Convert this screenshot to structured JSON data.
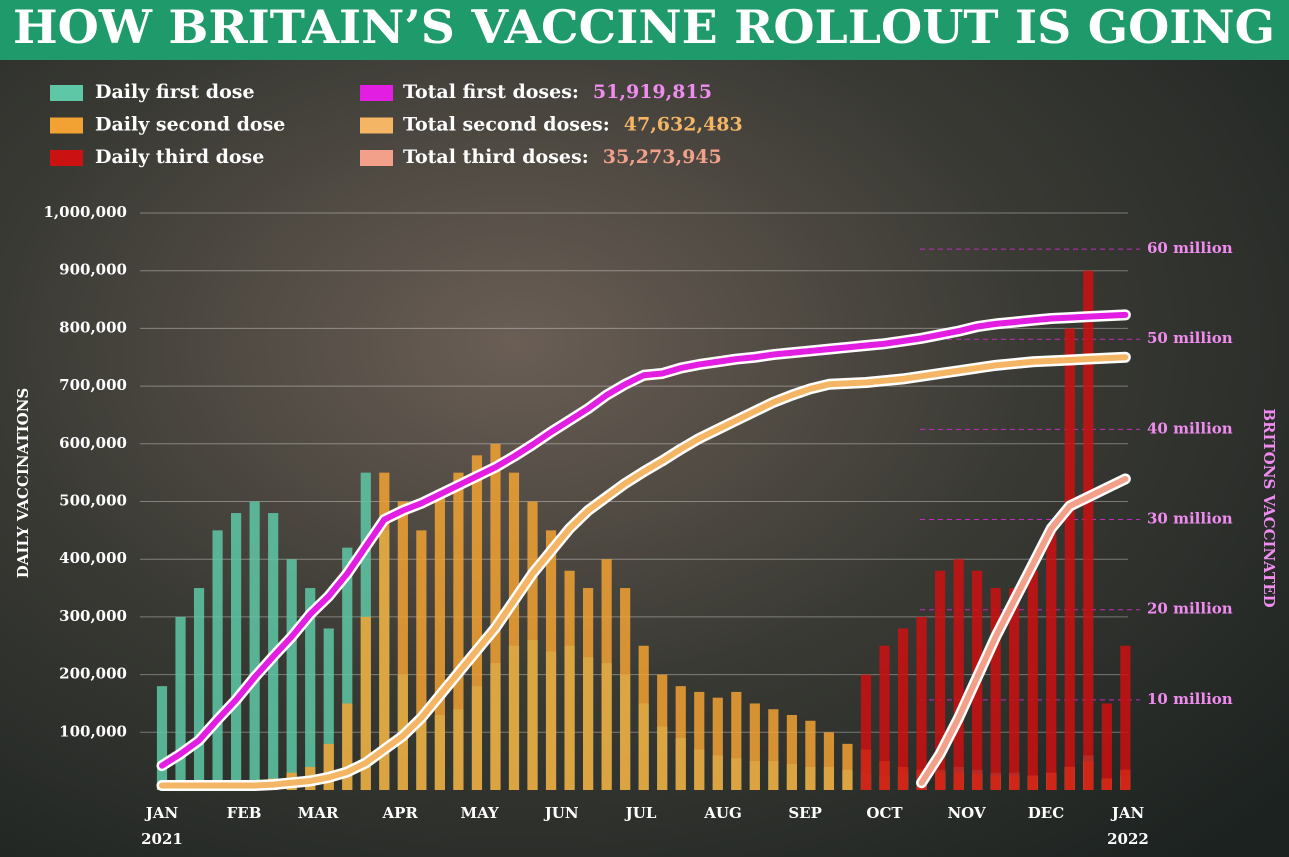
{
  "chart_data": {
    "type": "bar-line",
    "title": "HOW BRITAIN’S VACCINE ROLLOUT IS GOING",
    "y_label": "DAILY VACCINATIONS",
    "y2_label": "BRITONS VACCINATED",
    "xlim": [
      0,
      365
    ],
    "xticks": [
      {
        "value": 0,
        "label": "JAN"
      },
      {
        "value": 31,
        "label": "FEB"
      },
      {
        "value": 59,
        "label": "MAR"
      },
      {
        "value": 90,
        "label": "APR"
      },
      {
        "value": 120,
        "label": "MAY"
      },
      {
        "value": 151,
        "label": "JUN"
      },
      {
        "value": 181,
        "label": "JUL"
      },
      {
        "value": 212,
        "label": "AUG"
      },
      {
        "value": 243,
        "label": "SEP"
      },
      {
        "value": 273,
        "label": "OCT"
      },
      {
        "value": 304,
        "label": "NOV"
      },
      {
        "value": 334,
        "label": "DEC"
      },
      {
        "value": 365,
        "label": "JAN"
      }
    ],
    "year_labels": [
      {
        "value": 0,
        "label": "2021"
      },
      {
        "value": 365,
        "label": "2022"
      }
    ],
    "ylim": [
      0,
      1000000
    ],
    "yticks": [
      {
        "value": 100000,
        "label": "100,000"
      },
      {
        "value": 200000,
        "label": "200,000"
      },
      {
        "value": 300000,
        "label": "300,000"
      },
      {
        "value": 400000,
        "label": "400,000"
      },
      {
        "value": 500000,
        "label": "500,000"
      },
      {
        "value": 600000,
        "label": "600,000"
      },
      {
        "value": 700000,
        "label": "700,000"
      },
      {
        "value": 800000,
        "label": "800,000"
      },
      {
        "value": 900000,
        "label": "900,000"
      },
      {
        "value": 1000000,
        "label": "1,000,000"
      }
    ],
    "y2lim": [
      0,
      64000000
    ],
    "y2ticks": [
      {
        "value": 10000000,
        "label": "10 million"
      },
      {
        "value": 20000000,
        "label": "20 million"
      },
      {
        "value": 30000000,
        "label": "30 million"
      },
      {
        "value": 40000000,
        "label": "40 million"
      },
      {
        "value": 50000000,
        "label": "50 million"
      },
      {
        "value": 60000000,
        "label": "60 million"
      }
    ],
    "grid": true,
    "x": [
      0,
      7,
      14,
      21,
      28,
      35,
      42,
      49,
      56,
      63,
      70,
      77,
      84,
      91,
      98,
      105,
      112,
      119,
      126,
      133,
      140,
      147,
      154,
      161,
      168,
      175,
      182,
      189,
      196,
      203,
      210,
      217,
      224,
      231,
      238,
      245,
      252,
      259,
      266,
      273,
      280,
      287,
      294,
      301,
      308,
      315,
      322,
      329,
      336,
      343,
      350,
      357,
      364
    ],
    "series": [
      {
        "name": "Daily first dose",
        "type": "bar",
        "color": "#5ec8a6",
        "values": [
          180000,
          300000,
          350000,
          450000,
          480000,
          500000,
          480000,
          400000,
          350000,
          280000,
          420000,
          550000,
          450000,
          200000,
          120000,
          130000,
          140000,
          180000,
          220000,
          250000,
          260000,
          240000,
          250000,
          230000,
          220000,
          200000,
          150000,
          110000,
          90000,
          70000,
          60000,
          55000,
          50000,
          50000,
          45000,
          40000,
          40000,
          35000,
          30000,
          25000,
          30000,
          30000,
          35000,
          40000,
          35000,
          30000,
          30000,
          25000,
          30000,
          40000,
          60000,
          20000,
          25000
        ]
      },
      {
        "name": "Daily second dose",
        "type": "bar",
        "color": "#f2a233",
        "values": [
          5000,
          5000,
          3000,
          3000,
          5000,
          10000,
          20000,
          30000,
          40000,
          80000,
          150000,
          300000,
          550000,
          500000,
          450000,
          520000,
          550000,
          580000,
          600000,
          550000,
          500000,
          450000,
          380000,
          350000,
          400000,
          350000,
          250000,
          200000,
          180000,
          170000,
          160000,
          170000,
          150000,
          140000,
          130000,
          120000,
          100000,
          80000,
          70000,
          50000,
          40000,
          35000,
          30000,
          30000,
          28000,
          25000,
          25000,
          25000,
          30000,
          40000,
          50000,
          20000,
          35000
        ]
      },
      {
        "name": "Daily third dose",
        "type": "bar",
        "color": "#cc1111",
        "values": [
          0,
          0,
          0,
          0,
          0,
          0,
          0,
          0,
          0,
          0,
          0,
          0,
          0,
          0,
          0,
          0,
          0,
          0,
          0,
          0,
          0,
          0,
          0,
          0,
          0,
          0,
          0,
          0,
          0,
          0,
          0,
          0,
          0,
          0,
          0,
          0,
          0,
          0,
          200000,
          250000,
          280000,
          300000,
          380000,
          400000,
          380000,
          350000,
          350000,
          380000,
          450000,
          800000,
          900000,
          150000,
          250000
        ]
      },
      {
        "name": "Total first doses:",
        "type": "line",
        "axis": "y2",
        "color": "#e21ee2",
        "total": 51919815,
        "total_label": "51,919,815",
        "label_color": "#f08cf0",
        "values": [
          2700000,
          4000000,
          5500000,
          7800000,
          10000000,
          12500000,
          14800000,
          17000000,
          19500000,
          21500000,
          24000000,
          27000000,
          30000000,
          31000000,
          31800000,
          32800000,
          33800000,
          34800000,
          35800000,
          37000000,
          38300000,
          39700000,
          41000000,
          42300000,
          43800000,
          45000000,
          46000000,
          46200000,
          46800000,
          47200000,
          47500000,
          47800000,
          48000000,
          48300000,
          48500000,
          48700000,
          48900000,
          49100000,
          49300000,
          49500000,
          49800000,
          50100000,
          50500000,
          50900000,
          51400000,
          51700000,
          51900000,
          52100000,
          52300000,
          52400000,
          52500000,
          52600000,
          52700000
        ]
      },
      {
        "name": "Total second doses:",
        "type": "line",
        "axis": "y2",
        "color": "#f4b565",
        "total": 47632483,
        "total_label": "47,632,483",
        "label_color": "#f4b565",
        "values": [
          500000,
          500000,
          500000,
          500000,
          500000,
          500000,
          600000,
          800000,
          1000000,
          1400000,
          2000000,
          3000000,
          4500000,
          6000000,
          8000000,
          10500000,
          13000000,
          15500000,
          18000000,
          21000000,
          24000000,
          26500000,
          29000000,
          31000000,
          32500000,
          34000000,
          35300000,
          36500000,
          37800000,
          39000000,
          40000000,
          41000000,
          42000000,
          43000000,
          43800000,
          44500000,
          45000000,
          45100000,
          45200000,
          45400000,
          45600000,
          45900000,
          46200000,
          46500000,
          46800000,
          47100000,
          47300000,
          47500000,
          47600000,
          47700000,
          47800000,
          47900000,
          48000000
        ]
      },
      {
        "name": "Total third doses:",
        "type": "line",
        "axis": "y2",
        "color": "#f2a08a",
        "total": 35273945,
        "total_label": "35,273,945",
        "label_color": "#f2a08a",
        "values": [
          null,
          null,
          null,
          null,
          null,
          null,
          null,
          null,
          null,
          null,
          null,
          null,
          null,
          null,
          null,
          null,
          null,
          null,
          null,
          null,
          null,
          null,
          null,
          null,
          null,
          null,
          null,
          null,
          null,
          null,
          null,
          null,
          null,
          null,
          null,
          null,
          null,
          null,
          null,
          null,
          null,
          800000,
          4000000,
          8000000,
          12500000,
          17000000,
          21000000,
          25000000,
          29000000,
          31500000,
          32500000,
          33500000,
          34500000
        ]
      }
    ]
  }
}
